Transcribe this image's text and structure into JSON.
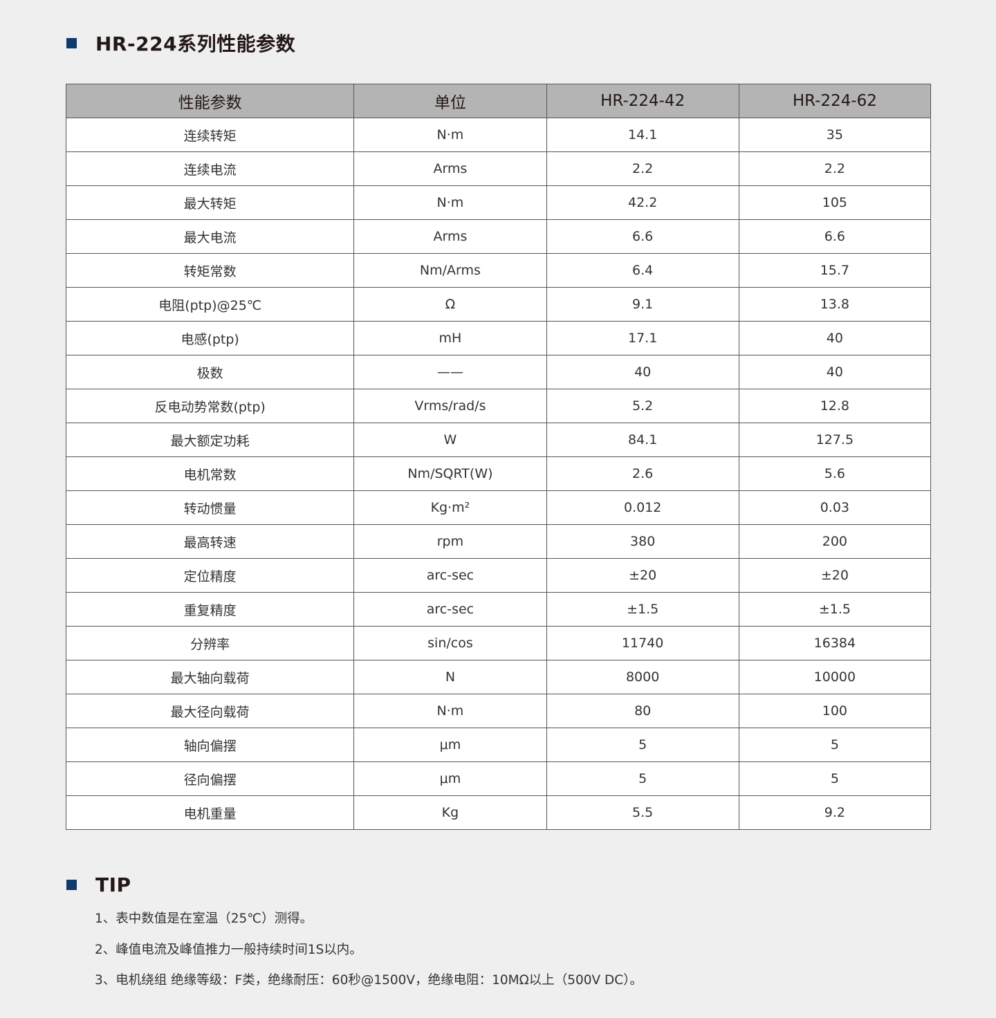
{
  "title": "HR-224系列性能参数",
  "table": {
    "headers": [
      "性能参数",
      "单位",
      "HR-224-42",
      "HR-224-62"
    ],
    "rows": [
      [
        "连续转矩",
        "N·m",
        "14.1",
        "35"
      ],
      [
        "连续电流",
        "Arms",
        "2.2",
        "2.2"
      ],
      [
        "最大转矩",
        "N·m",
        "42.2",
        "105"
      ],
      [
        "最大电流",
        "Arms",
        "6.6",
        "6.6"
      ],
      [
        "转矩常数",
        "Nm/Arms",
        "6.4",
        "15.7"
      ],
      [
        "电阻(ptp)@25℃",
        "Ω",
        "9.1",
        "13.8"
      ],
      [
        "电感(ptp)",
        "mH",
        "17.1",
        "40"
      ],
      [
        "极数",
        "——",
        "40",
        "40"
      ],
      [
        "反电动势常数(ptp)",
        "Vrms/rad/s",
        "5.2",
        "12.8"
      ],
      [
        "最大额定功耗",
        "W",
        "84.1",
        "127.5"
      ],
      [
        "电机常数",
        "Nm/SQRT(W)",
        "2.6",
        "5.6"
      ],
      [
        "转动惯量",
        "Kg·m²",
        "0.012",
        "0.03"
      ],
      [
        "最高转速",
        "rpm",
        "380",
        "200"
      ],
      [
        "定位精度",
        "arc-sec",
        "±20",
        "±20"
      ],
      [
        "重复精度",
        "arc-sec",
        "±1.5",
        "±1.5"
      ],
      [
        "分辨率",
        "sin/cos",
        "11740",
        "16384"
      ],
      [
        "最大轴向载荷",
        "N",
        "8000",
        "10000"
      ],
      [
        "最大径向载荷",
        "N·m",
        "80",
        "100"
      ],
      [
        "轴向偏摆",
        "μm",
        "5",
        "5"
      ],
      [
        "径向偏摆",
        "μm",
        "5",
        "5"
      ],
      [
        "电机重量",
        "Kg",
        "5.5",
        "9.2"
      ]
    ]
  },
  "tip": {
    "title": "TIP",
    "items": [
      "1、表中数值是在室温（25℃）测得。",
      "2、峰值电流及峰值推力一般持续时间1S以内。",
      "3、电机绕组 绝缘等级：F类，绝缘耐压：60秒@1500V，绝缘电阻：10MΩ以上（500V DC）。"
    ]
  },
  "colors": {
    "accent": "#0f3a6b",
    "header_bg": "#b4b4b4",
    "page_bg": "#efefef"
  }
}
